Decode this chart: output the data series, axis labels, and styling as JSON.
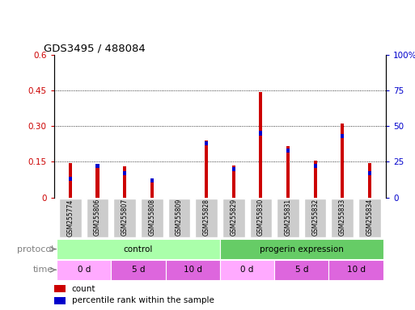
{
  "title": "GDS3495 / 488084",
  "samples": [
    "GSM255774",
    "GSM255806",
    "GSM255807",
    "GSM255808",
    "GSM255809",
    "GSM255828",
    "GSM255829",
    "GSM255830",
    "GSM255831",
    "GSM255832",
    "GSM255833",
    "GSM255834"
  ],
  "count_values": [
    0.145,
    0.135,
    0.13,
    0.065,
    0.0,
    0.24,
    0.135,
    0.445,
    0.215,
    0.155,
    0.31,
    0.145
  ],
  "percentile_pct": [
    13,
    22,
    17,
    12,
    0,
    38,
    20,
    45,
    33,
    22,
    43,
    17
  ],
  "ylim_left": [
    0,
    0.6
  ],
  "ylim_right": [
    0,
    100
  ],
  "yticks_left": [
    0,
    0.15,
    0.3,
    0.45,
    0.6
  ],
  "yticks_right": [
    0,
    25,
    50,
    75,
    100
  ],
  "bar_color": "#cc0000",
  "blue_color": "#0000cc",
  "bg_color": "#ffffff",
  "xticklabel_bg": "#cccccc",
  "bar_width": 0.12,
  "blue_bar_width": 0.12,
  "blue_bar_height": 0.018,
  "protocol_light": "#aaffaa",
  "protocol_dark": "#66cc66",
  "time_light": "#ffaaff",
  "time_dark": "#dd66dd",
  "time_groups": [
    {
      "label": "0 d",
      "start": 0,
      "end": 2,
      "light": true
    },
    {
      "label": "5 d",
      "start": 2,
      "end": 4,
      "light": false
    },
    {
      "label": "10 d",
      "start": 4,
      "end": 6,
      "light": false
    },
    {
      "label": "0 d",
      "start": 6,
      "end": 8,
      "light": true
    },
    {
      "label": "5 d",
      "start": 8,
      "end": 10,
      "light": false
    },
    {
      "label": "10 d",
      "start": 10,
      "end": 12,
      "light": false
    }
  ]
}
